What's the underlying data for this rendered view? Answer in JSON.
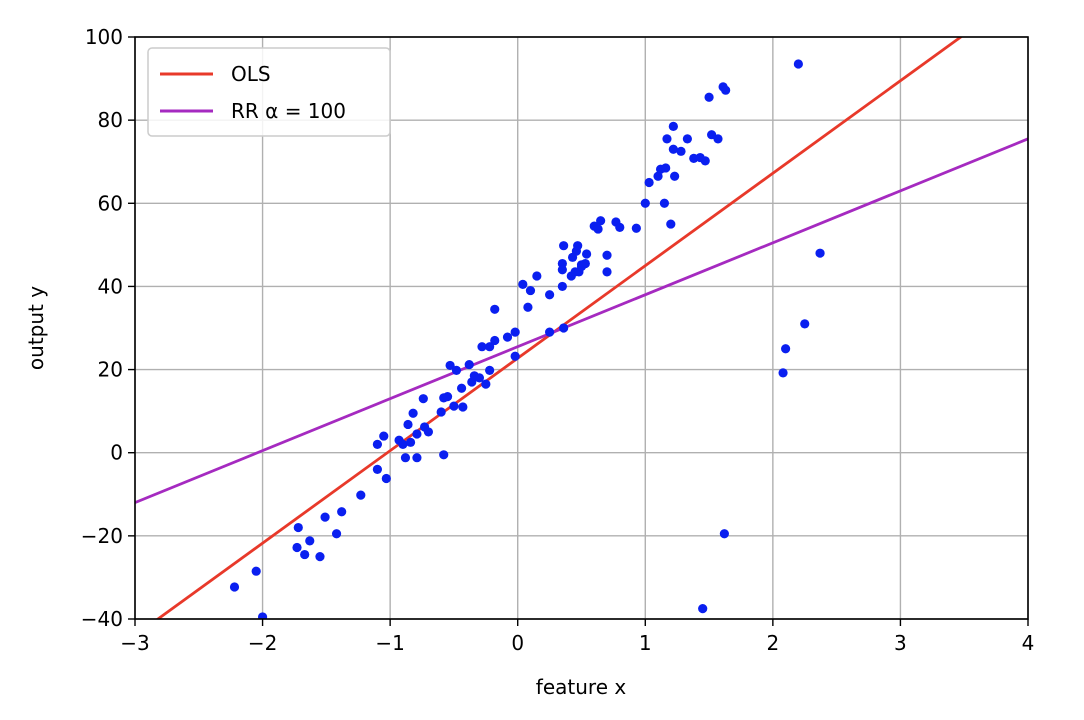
{
  "chart_data": {
    "type": "scatter",
    "title": "",
    "xlabel": "feature x",
    "ylabel": "output y",
    "xlim": [
      -3,
      4
    ],
    "ylim": [
      -40,
      100
    ],
    "xticks": [
      -3,
      -2,
      -1,
      0,
      1,
      2,
      3,
      4
    ],
    "yticks": [
      -40,
      -20,
      0,
      20,
      40,
      60,
      80,
      100
    ],
    "xtick_labels": [
      "−3",
      "−2",
      "−1",
      "0",
      "1",
      "2",
      "3",
      "4"
    ],
    "ytick_labels": [
      "−40",
      "−20",
      "0",
      "20",
      "40",
      "60",
      "80",
      "100"
    ],
    "grid": true,
    "legend_position": "top-left",
    "colors": {
      "points": "#0a1ff0",
      "ols": "#e8392a",
      "rr": "#a52ac0",
      "grid": "#b0b0b0"
    },
    "series": [
      {
        "name": "",
        "kind": "points",
        "points": [
          [
            -2.22,
            -32.3
          ],
          [
            -2.05,
            -28.5
          ],
          [
            -2.0,
            -39.5
          ],
          [
            -1.72,
            -18.0
          ],
          [
            -1.73,
            -22.8
          ],
          [
            -1.67,
            -24.5
          ],
          [
            -1.63,
            -21.2
          ],
          [
            -1.55,
            -25.0
          ],
          [
            -1.51,
            -15.5
          ],
          [
            -1.42,
            -19.5
          ],
          [
            -1.38,
            -14.2
          ],
          [
            -1.23,
            -10.2
          ],
          [
            -1.1,
            -4.0
          ],
          [
            -1.1,
            2.0
          ],
          [
            -1.05,
            4.0
          ],
          [
            -1.03,
            -6.2
          ],
          [
            -0.93,
            3.0
          ],
          [
            -0.9,
            2.0
          ],
          [
            -0.88,
            -1.2
          ],
          [
            -0.86,
            6.8
          ],
          [
            -0.84,
            2.5
          ],
          [
            -0.82,
            9.5
          ],
          [
            -0.79,
            4.5
          ],
          [
            -0.79,
            -1.2
          ],
          [
            -0.74,
            13.0
          ],
          [
            -0.73,
            6.2
          ],
          [
            -0.7,
            5.0
          ],
          [
            -0.6,
            9.8
          ],
          [
            -0.58,
            -0.5
          ],
          [
            -0.58,
            13.2
          ],
          [
            -0.55,
            13.5
          ],
          [
            -0.53,
            21.0
          ],
          [
            -0.5,
            11.2
          ],
          [
            -0.48,
            19.8
          ],
          [
            -0.44,
            15.5
          ],
          [
            -0.43,
            11.0
          ],
          [
            -0.38,
            21.2
          ],
          [
            -0.36,
            17.0
          ],
          [
            -0.34,
            18.5
          ],
          [
            -0.3,
            18.0
          ],
          [
            -0.28,
            25.5
          ],
          [
            -0.25,
            16.5
          ],
          [
            -0.22,
            19.8
          ],
          [
            -0.22,
            25.5
          ],
          [
            -0.18,
            27.0
          ],
          [
            -0.18,
            34.5
          ],
          [
            -0.08,
            27.8
          ],
          [
            -0.02,
            29.0
          ],
          [
            -0.02,
            23.2
          ],
          [
            0.04,
            40.5
          ],
          [
            0.08,
            35.0
          ],
          [
            0.1,
            39.0
          ],
          [
            0.15,
            42.5
          ],
          [
            0.25,
            38.0
          ],
          [
            0.25,
            29.0
          ],
          [
            0.35,
            40.0
          ],
          [
            0.35,
            45.5
          ],
          [
            0.35,
            44.0
          ],
          [
            0.36,
            30.0
          ],
          [
            0.36,
            49.8
          ],
          [
            0.42,
            42.5
          ],
          [
            0.43,
            47.0
          ],
          [
            0.45,
            43.5
          ],
          [
            0.46,
            48.5
          ],
          [
            0.47,
            49.8
          ],
          [
            0.48,
            43.5
          ],
          [
            0.5,
            45.2
          ],
          [
            0.5,
            44.8
          ],
          [
            0.53,
            45.5
          ],
          [
            0.54,
            47.8
          ],
          [
            0.6,
            54.5
          ],
          [
            0.63,
            53.8
          ],
          [
            0.65,
            55.8
          ],
          [
            0.7,
            47.5
          ],
          [
            0.7,
            43.5
          ],
          [
            0.77,
            55.5
          ],
          [
            0.8,
            54.2
          ],
          [
            0.93,
            54.0
          ],
          [
            1.0,
            60.0
          ],
          [
            1.03,
            65.0
          ],
          [
            1.1,
            66.5
          ],
          [
            1.12,
            68.2
          ],
          [
            1.15,
            60.0
          ],
          [
            1.16,
            68.5
          ],
          [
            1.17,
            75.5
          ],
          [
            1.2,
            55.0
          ],
          [
            1.22,
            78.5
          ],
          [
            1.22,
            73.0
          ],
          [
            1.23,
            66.5
          ],
          [
            1.28,
            72.5
          ],
          [
            1.33,
            75.5
          ],
          [
            1.38,
            70.8
          ],
          [
            1.43,
            71.0
          ],
          [
            1.47,
            70.2
          ],
          [
            1.5,
            85.5
          ],
          [
            1.52,
            76.5
          ],
          [
            1.57,
            75.5
          ],
          [
            1.61,
            88.0
          ],
          [
            1.63,
            87.2
          ],
          [
            2.2,
            93.5
          ],
          [
            1.62,
            -19.5
          ],
          [
            1.45,
            -37.5
          ],
          [
            2.08,
            19.2
          ],
          [
            2.1,
            25.0
          ],
          [
            2.25,
            31.0
          ],
          [
            2.37,
            48.0
          ]
        ]
      },
      {
        "name": "OLS",
        "kind": "line",
        "x": [
          -3,
          3.5
        ],
        "y": [
          -44.0,
          100.6
        ]
      },
      {
        "name": "RR α = 100",
        "kind": "line",
        "x": [
          -3,
          4
        ],
        "y": [
          -12.0,
          75.5
        ]
      }
    ]
  }
}
